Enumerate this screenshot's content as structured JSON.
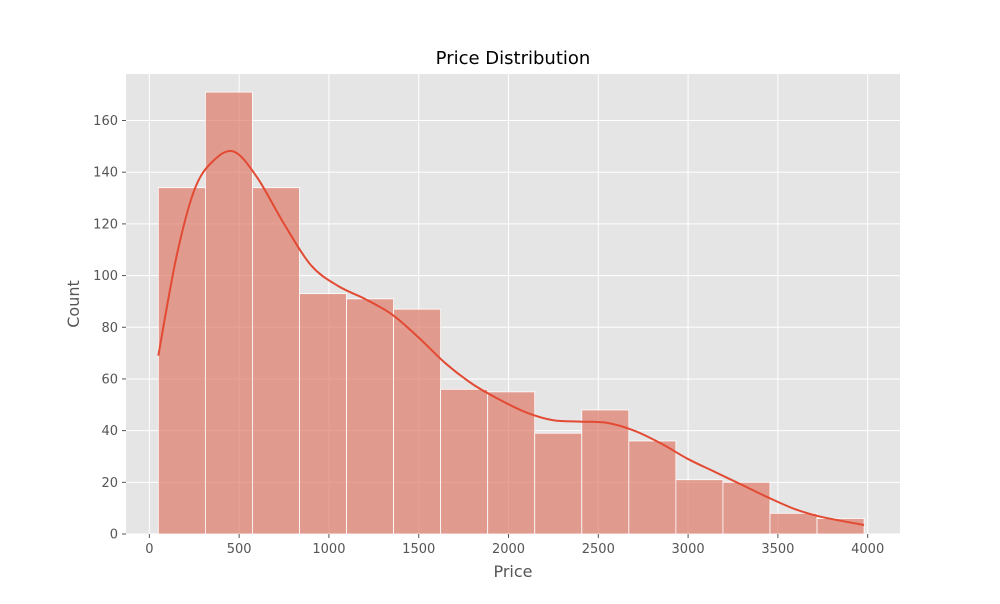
{
  "chart_data": {
    "type": "bar",
    "title": "Price Distribution",
    "xlabel": "Price",
    "ylabel": "Count",
    "xlim": [
      -130,
      4180
    ],
    "ylim": [
      0,
      178
    ],
    "grid": true,
    "style": "ggplot",
    "colors": {
      "plot_background": "#e5e5e5",
      "grid": "#ffffff",
      "bar_fill": "#e07b6a",
      "bar_opacity": 0.7,
      "bar_edge": "#ffffff",
      "kde_line": "#e24a33",
      "tick_color": "#555555"
    },
    "x_ticks": [
      0,
      500,
      1000,
      1500,
      2000,
      2500,
      3000,
      3500,
      4000
    ],
    "x_tick_labels": [
      "0",
      "500",
      "1000",
      "1500",
      "2000",
      "2500",
      "3000",
      "3500",
      "4000"
    ],
    "y_ticks": [
      0,
      20,
      40,
      60,
      80,
      100,
      120,
      140,
      160
    ],
    "y_tick_labels": [
      "0",
      "20",
      "40",
      "60",
      "80",
      "100",
      "120",
      "140",
      "160"
    ],
    "bins": {
      "edges": [
        50,
        312,
        574,
        836,
        1098,
        1360,
        1622,
        1884,
        2146,
        2408,
        2670,
        2932,
        3194,
        3456,
        3718,
        3980
      ],
      "counts": [
        134,
        171,
        134,
        93,
        91,
        87,
        56,
        55,
        39,
        48,
        36,
        21,
        20,
        8,
        6
      ]
    },
    "kde": {
      "x": [
        50,
        150,
        250,
        350,
        470,
        600,
        750,
        900,
        1050,
        1200,
        1350,
        1500,
        1650,
        1800,
        1950,
        2100,
        2250,
        2400,
        2550,
        2700,
        2850,
        3000,
        3150,
        3300,
        3450,
        3600,
        3750,
        3980
      ],
      "y": [
        69,
        107,
        133,
        144,
        148,
        138,
        120,
        104,
        96,
        91,
        85,
        76,
        66,
        58,
        52,
        47,
        44,
        43.5,
        43,
        40,
        35,
        29,
        24,
        19,
        14,
        9.5,
        6.5,
        3.5
      ]
    }
  }
}
